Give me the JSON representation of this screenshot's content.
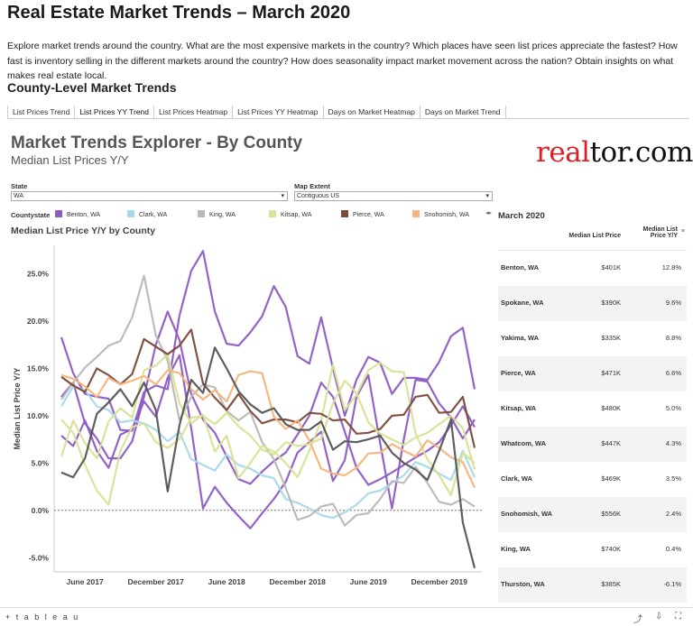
{
  "page": {
    "title": "Real Estate Market Trends – March 2020",
    "intro": "Explore market trends around the country. What are the most expensive markets in the country? Which places have seen list prices appreciate the fastest? How fast is inventory selling in the different markets around the country? How does seasonality impact market movement across the nation? Obtain insights on what makes real estate local.",
    "section_title": "County-Level Market Trends"
  },
  "tabs": [
    "List Prices Trend",
    "List Prices YY Trend",
    "List Prices Heatmap",
    "List Prices YY Heatmap",
    "Days on Market Heatmap",
    "Days on Market Trend"
  ],
  "active_tab": 1,
  "dashboard": {
    "title": "Market Trends Explorer - By County",
    "subtitle": "Median List Prices Y/Y",
    "logo": "realtor.com",
    "state_label": "State",
    "state_value": "WA",
    "map_extent_label": "Map Extent",
    "map_extent_value": "Contiguous US",
    "legend_title": "Countystate",
    "chart_title": "Median List Price Y/Y by County"
  },
  "legend": [
    {
      "name": "Benton, WA",
      "color": "#8e5bc4"
    },
    {
      "name": "Clark, WA",
      "color": "#a6d9ea"
    },
    {
      "name": "King, WA",
      "color": "#b8b8b8"
    },
    {
      "name": "Kitsap, WA",
      "color": "#d9e296"
    },
    {
      "name": "Pierce, WA",
      "color": "#7b4a3a"
    },
    {
      "name": "Snohomish, WA",
      "color": "#f5b47a"
    }
  ],
  "table": {
    "title": "March 2020",
    "col_price": "Median List Price",
    "col_yy": "Median List Price Y/Y",
    "rows": [
      {
        "county": "Benton, WA",
        "price": "$401K",
        "yy": "12.8%"
      },
      {
        "county": "Spokane, WA",
        "price": "$390K",
        "yy": "9.6%"
      },
      {
        "county": "Yakima, WA",
        "price": "$335K",
        "yy": "8.8%"
      },
      {
        "county": "Pierce, WA",
        "price": "$471K",
        "yy": "6.6%"
      },
      {
        "county": "Kitsap, WA",
        "price": "$480K",
        "yy": "5.0%"
      },
      {
        "county": "Whatcom, WA",
        "price": "$447K",
        "yy": "4.3%"
      },
      {
        "county": "Clark, WA",
        "price": "$469K",
        "yy": "3.5%"
      },
      {
        "county": "Snohomish, WA",
        "price": "$556K",
        "yy": "2.4%"
      },
      {
        "county": "King, WA",
        "price": "$740K",
        "yy": "0.4%"
      },
      {
        "county": "Thurston, WA",
        "price": "$385K",
        "yy": "-6.1%"
      }
    ]
  },
  "footer": {
    "brand": "+ t a b l e a u"
  },
  "chart_data": {
    "type": "line",
    "title": "Median List Price Y/Y by County",
    "ylabel": "Median List Price Y/Y",
    "ylim": [
      -6.5,
      28
    ],
    "yticks": [
      -5,
      0,
      5,
      10,
      15,
      20,
      25
    ],
    "ytick_labels": [
      "-5.0%",
      "0.0%",
      "5.0%",
      "10.0%",
      "15.0%",
      "20.0%",
      "25.0%"
    ],
    "x": [
      "2017-04",
      "2017-05",
      "2017-06",
      "2017-07",
      "2017-08",
      "2017-09",
      "2017-10",
      "2017-11",
      "2017-12",
      "2018-01",
      "2018-02",
      "2018-03",
      "2018-04",
      "2018-05",
      "2018-06",
      "2018-07",
      "2018-08",
      "2018-09",
      "2018-10",
      "2018-11",
      "2018-12",
      "2019-01",
      "2019-02",
      "2019-03",
      "2019-04",
      "2019-05",
      "2019-06",
      "2019-07",
      "2019-08",
      "2019-09",
      "2019-10",
      "2019-11",
      "2019-12",
      "2020-01",
      "2020-02",
      "2020-03"
    ],
    "xtick_labels": [
      {
        "label": "June 2017",
        "index": 2
      },
      {
        "label": "December 2017",
        "index": 8
      },
      {
        "label": "June 2018",
        "index": 14
      },
      {
        "label": "December 2018",
        "index": 20
      },
      {
        "label": "June 2019",
        "index": 26
      },
      {
        "label": "December 2019",
        "index": 32
      }
    ],
    "zero_line": true,
    "series": [
      {
        "name": "Benton, WA",
        "color": "#8e5bc4",
        "values": [
          18.3,
          14.5,
          12.3,
          12.0,
          11.8,
          8.5,
          8.4,
          12.5,
          13.2,
          12.8,
          20.6,
          25.3,
          27.4,
          21.0,
          17.6,
          17.4,
          18.8,
          20.5,
          23.7,
          21.5,
          16.3,
          15.5,
          20.4,
          15.0,
          10.0,
          13.8,
          16.2,
          15.6,
          12.3,
          14.0,
          14.0,
          13.8,
          15.7,
          18.4,
          19.3,
          12.8
        ]
      },
      {
        "name": "Spokane, WA",
        "color": "#8e5bc4",
        "values": [
          7.9,
          6.8,
          9.5,
          6.3,
          4.5,
          8.0,
          8.6,
          11.5,
          9.9,
          14.0,
          16.4,
          8.7,
          0.2,
          2.5,
          0.8,
          -0.6,
          -1.9,
          -0.3,
          1.2,
          3.0,
          6.1,
          7.2,
          8.3,
          3.1,
          5.3,
          12.0,
          14.3,
          7.1,
          0.2,
          7.5,
          13.8,
          13.6,
          11.3,
          9.8,
          7.6,
          9.6
        ]
      },
      {
        "name": "Yakima, WA",
        "color": "#8e5bc4",
        "values": [
          12.0,
          13.5,
          9.2,
          7.6,
          5.5,
          5.5,
          7.3,
          12.0,
          17.5,
          21.0,
          18.0,
          12.3,
          9.6,
          8.2,
          5.7,
          3.3,
          2.8,
          4.1,
          5.2,
          6.1,
          8.0,
          10.0,
          13.5,
          12.0,
          8.3,
          4.5,
          2.7,
          3.3,
          4.0,
          4.8,
          5.6,
          6.3,
          7.2,
          9.0,
          11.0,
          8.8
        ]
      },
      {
        "name": "Clark, WA",
        "color": "#a6d9ea",
        "values": [
          11.0,
          13.1,
          12.7,
          11.0,
          10.6,
          9.3,
          9.5,
          9.2,
          8.5,
          7.3,
          8.3,
          5.4,
          4.8,
          4.2,
          5.9,
          4.8,
          4.4,
          3.7,
          3.4,
          1.2,
          0.8,
          0.2,
          -0.5,
          -0.8,
          -0.2,
          0.6,
          1.8,
          2.1,
          2.9,
          3.7,
          5.1,
          4.6,
          3.9,
          3.2,
          6.3,
          3.5
        ]
      },
      {
        "name": "King, WA",
        "color": "#b8b8b8",
        "values": [
          11.7,
          13.5,
          15.1,
          16.2,
          17.4,
          17.9,
          20.4,
          24.8,
          18.5,
          15.8,
          9.5,
          12.0,
          13.3,
          13.0,
          10.5,
          9.5,
          10.4,
          7.2,
          5.4,
          2.4,
          -1.0,
          -0.6,
          0.4,
          0.7,
          -1.6,
          -0.5,
          -0.3,
          1.2,
          3.1,
          2.9,
          4.6,
          2.9,
          0.9,
          0.6,
          1.2,
          0.4
        ]
      },
      {
        "name": "Kitsap, WA",
        "color": "#d9e296",
        "values": [
          5.7,
          9.5,
          7.1,
          5.5,
          9.4,
          10.8,
          9.8,
          14.8,
          15.3,
          16.5,
          11.3,
          9.2,
          10.1,
          6.2,
          7.9,
          3.4,
          5.0,
          6.8,
          6.2,
          5.0,
          3.5,
          6.3,
          9.5,
          15.4,
          10.6,
          12.2,
          14.8,
          15.6,
          14.7,
          14.6,
          8.1,
          5.4,
          3.7,
          1.6,
          6.1,
          5.0
        ]
      },
      {
        "name": "Pierce, WA",
        "color": "#7b4a3a",
        "values": [
          14.1,
          13.2,
          12.5,
          15.0,
          14.3,
          13.3,
          14.4,
          18.1,
          17.3,
          16.5,
          17.4,
          19.1,
          13.4,
          11.9,
          10.6,
          12.3,
          10.5,
          9.2,
          9.6,
          9.6,
          9.3,
          10.3,
          10.2,
          9.5,
          9.6,
          8.1,
          8.2,
          8.6,
          10.0,
          10.1,
          12.0,
          12.2,
          10.3,
          10.4,
          12.0,
          6.6
        ]
      },
      {
        "name": "Snohomish, WA",
        "color": "#f5b47a",
        "values": [
          14.3,
          13.9,
          13.1,
          12.0,
          14.0,
          13.3,
          13.7,
          14.2,
          13.3,
          14.8,
          14.5,
          12.8,
          11.7,
          12.7,
          11.5,
          14.3,
          14.7,
          14.5,
          9.9,
          8.6,
          9.5,
          7.4,
          4.4,
          3.9,
          3.7,
          4.5,
          6.0,
          6.1,
          7.0,
          6.3,
          5.7,
          7.4,
          6.6,
          5.6,
          5.1,
          2.4
        ]
      },
      {
        "name": "Whatcom, WA",
        "color": "#d9e296",
        "values": [
          9.6,
          8.2,
          4.8,
          2.1,
          0.6,
          6.3,
          8.8,
          9.2,
          7.2,
          6.6,
          7.5,
          9.8,
          10.0,
          9.1,
          10.3,
          8.9,
          7.9,
          6.4,
          5.9,
          7.2,
          6.8,
          7.0,
          7.6,
          11.3,
          13.7,
          12.4,
          9.3,
          8.1,
          7.5,
          6.9,
          7.7,
          8.2,
          9.1,
          10.0,
          8.7,
          4.3
        ]
      },
      {
        "name": "Thurston, WA",
        "color": "#555555",
        "values": [
          4.0,
          3.5,
          5.5,
          10.2,
          11.4,
          12.8,
          11.0,
          13.5,
          10.6,
          2.0,
          9.0,
          13.8,
          12.4,
          17.2,
          15.0,
          12.6,
          11.2,
          10.3,
          10.8,
          9.1,
          8.5,
          8.5,
          9.4,
          6.4,
          7.3,
          7.2,
          7.5,
          7.9,
          6.1,
          5.0,
          4.3,
          3.2,
          6.3,
          9.6,
          -1.3,
          -6.1
        ]
      }
    ]
  }
}
